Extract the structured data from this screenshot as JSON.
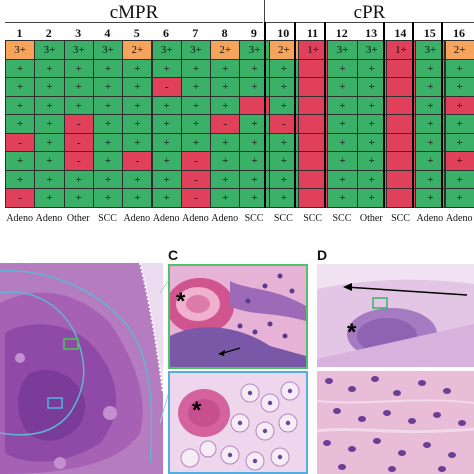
{
  "groups": [
    {
      "label": "cMPR"
    },
    {
      "label": "cPR"
    }
  ],
  "columns": [
    {
      "num": "1",
      "subtype": "Adeno"
    },
    {
      "num": "2",
      "subtype": "Adeno"
    },
    {
      "num": "3",
      "subtype": "Other"
    },
    {
      "num": "4",
      "subtype": "SCC"
    },
    {
      "num": "5",
      "subtype": "Adeno"
    },
    {
      "num": "6",
      "subtype": "Adeno"
    },
    {
      "num": "7",
      "subtype": "Adeno"
    },
    {
      "num": "8",
      "subtype": "Adeno"
    },
    {
      "num": "9",
      "subtype": "SCC"
    },
    {
      "num": "10",
      "subtype": "SCC"
    },
    {
      "num": "11",
      "subtype": "SCC"
    },
    {
      "num": "12",
      "subtype": "SCC"
    },
    {
      "num": "13",
      "subtype": "Other"
    },
    {
      "num": "14",
      "subtype": "SCC"
    },
    {
      "num": "15",
      "subtype": "Adeno"
    },
    {
      "num": "16",
      "subtype": "Adeno"
    }
  ],
  "grid": [
    [
      "3+",
      "3+",
      "3+",
      "3+",
      "2+",
      "3+",
      "3+",
      "2+",
      "3+",
      "2+",
      "1+",
      "3+",
      "3+",
      "1+",
      "3+",
      "2+"
    ],
    [
      "+",
      "+",
      "+",
      "+",
      "+",
      "+",
      "+",
      "+",
      "+",
      "+",
      "",
      "+",
      "+",
      "",
      "+",
      "+"
    ],
    [
      "+",
      "+",
      "+",
      "+",
      "+",
      "-",
      "+",
      "+",
      "+",
      "+",
      "",
      "+",
      "+",
      "",
      "+",
      "+"
    ],
    [
      "+",
      "+",
      "+",
      "+",
      "+",
      "+",
      "+",
      "+",
      "",
      "+",
      "",
      "+",
      "+",
      "",
      "+",
      "+"
    ],
    [
      "+",
      "+",
      "-",
      "+",
      "+",
      "+",
      "+",
      "-",
      "+",
      "-",
      "",
      "+",
      "+",
      "",
      "+",
      "+"
    ],
    [
      "-",
      "+",
      "-",
      "+",
      "+",
      "+",
      "+",
      "+",
      "+",
      "+",
      "",
      "+",
      "+",
      "",
      "+",
      "+"
    ],
    [
      "+",
      "+",
      "-",
      "+",
      "-",
      "+",
      "-",
      "+",
      "+",
      "+",
      "",
      "+",
      "+",
      "",
      "+",
      "+"
    ],
    [
      "+",
      "+",
      "+",
      "+",
      "+",
      "+",
      "-",
      "+",
      "+",
      "+",
      "",
      "+",
      "+",
      "",
      "+",
      "+"
    ],
    [
      "-",
      "+",
      "+",
      "+",
      "+",
      "+",
      "-",
      "+",
      "+",
      "+",
      "",
      "+",
      "+",
      "",
      "+",
      "+"
    ]
  ],
  "cell_state": [
    [
      "o",
      "g",
      "g",
      "g",
      "o",
      "g",
      "g",
      "o",
      "g",
      "o",
      "r",
      "g",
      "g",
      "r",
      "g",
      "o"
    ],
    [
      "g",
      "g",
      "g",
      "g",
      "g",
      "g",
      "g",
      "g",
      "g",
      "g",
      "r",
      "g",
      "g",
      "r",
      "g",
      "g"
    ],
    [
      "g",
      "g",
      "g",
      "g",
      "g",
      "r",
      "g",
      "g",
      "g",
      "g",
      "r",
      "g",
      "g",
      "r",
      "g",
      "g"
    ],
    [
      "g",
      "g",
      "g",
      "g",
      "g",
      "g",
      "g",
      "g",
      "r",
      "g",
      "r",
      "g",
      "g",
      "r",
      "g",
      "r"
    ],
    [
      "g",
      "g",
      "r",
      "g",
      "g",
      "g",
      "g",
      "r",
      "g",
      "r",
      "r",
      "g",
      "g",
      "r",
      "g",
      "g"
    ],
    [
      "r",
      "g",
      "r",
      "g",
      "g",
      "g",
      "g",
      "g",
      "g",
      "g",
      "r",
      "g",
      "g",
      "r",
      "g",
      "g"
    ],
    [
      "g",
      "g",
      "r",
      "g",
      "r",
      "g",
      "r",
      "g",
      "g",
      "g",
      "r",
      "g",
      "g",
      "r",
      "g",
      "r"
    ],
    [
      "g",
      "g",
      "g",
      "g",
      "g",
      "g",
      "r",
      "g",
      "g",
      "g",
      "r",
      "g",
      "g",
      "r",
      "g",
      "g"
    ],
    [
      "r",
      "g",
      "g",
      "g",
      "g",
      "g",
      "r",
      "g",
      "g",
      "g",
      "r",
      "g",
      "g",
      "r",
      "g",
      "g"
    ]
  ],
  "colors": {
    "green": "#3bb069",
    "red": "#e0405a",
    "orange": "#f6a45c"
  },
  "panels": [
    {
      "tag": "C"
    },
    {
      "tag": "D"
    }
  ],
  "asterisk": "*"
}
